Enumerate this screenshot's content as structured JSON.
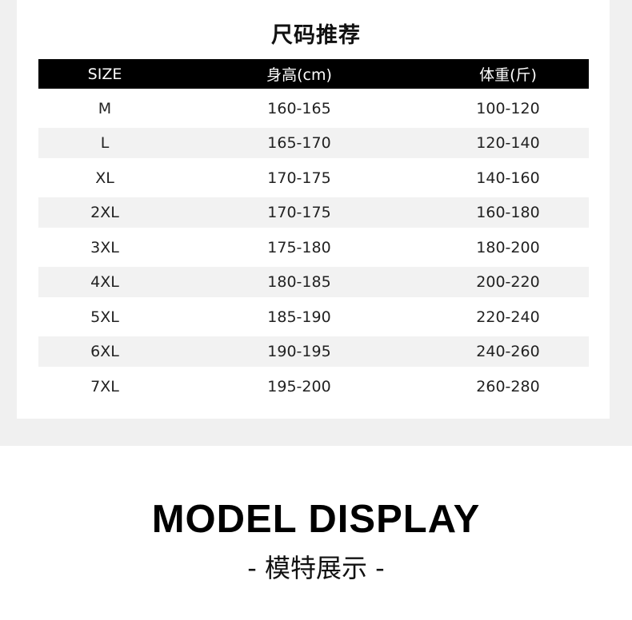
{
  "title": "尺码推荐",
  "table": {
    "headers": [
      "SIZE",
      "身高(cm)",
      "体重(斤)"
    ],
    "rows": [
      [
        "M",
        "160-165",
        "100-120"
      ],
      [
        "L",
        "165-170",
        "120-140"
      ],
      [
        "XL",
        "170-175",
        "140-160"
      ],
      [
        "2XL",
        "170-175",
        "160-180"
      ],
      [
        "3XL",
        "175-180",
        "180-200"
      ],
      [
        "4XL",
        "180-185",
        "200-220"
      ],
      [
        "5XL",
        "185-190",
        "220-240"
      ],
      [
        "6XL",
        "190-195",
        "240-260"
      ],
      [
        "7XL",
        "195-200",
        "260-280"
      ]
    ]
  },
  "section_heading": "MODEL DISPLAY",
  "section_subheading": "- 模特展示 -"
}
